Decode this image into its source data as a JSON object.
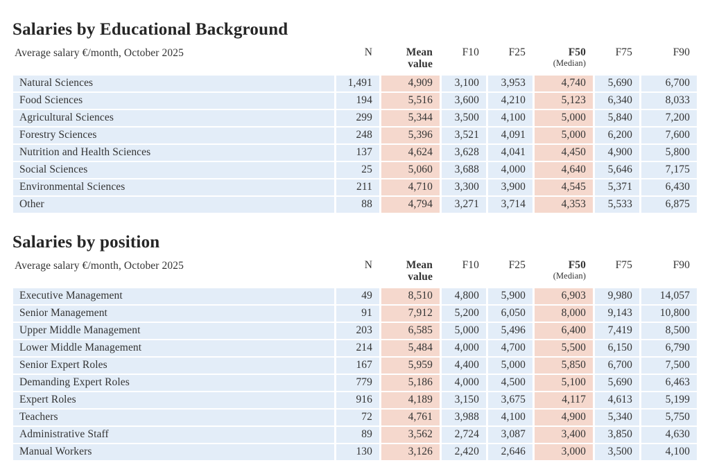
{
  "page": {
    "row_bg_color": "#e3edf8",
    "highlight_bg_color": "#f5d8cd",
    "text_color": "#333333",
    "title_color": "#262626"
  },
  "chart_data": [
    {
      "type": "table",
      "title": "Salaries by Educational Background",
      "subtitle": "Average salary €/month, October 2025",
      "columns": [
        {
          "label": "N",
          "sub": "",
          "bold": false,
          "sub_bold": false
        },
        {
          "label": "Mean",
          "sub": "value",
          "bold": true,
          "sub_bold": true
        },
        {
          "label": "F10",
          "sub": "",
          "bold": false,
          "sub_bold": false
        },
        {
          "label": "F25",
          "sub": "",
          "bold": false,
          "sub_bold": false
        },
        {
          "label": "F50",
          "sub": "(Median)",
          "bold": true,
          "sub_bold": false
        },
        {
          "label": "F75",
          "sub": "",
          "bold": false,
          "sub_bold": false
        },
        {
          "label": "F90",
          "sub": "",
          "bold": false,
          "sub_bold": false
        }
      ],
      "highlight_columns": [
        1,
        4
      ],
      "rows": [
        {
          "label": "Natural Sciences",
          "values": [
            "1,491",
            "4,909",
            "3,100",
            "3,953",
            "4,740",
            "5,690",
            "6,700"
          ]
        },
        {
          "label": "Food Sciences",
          "values": [
            "194",
            "5,516",
            "3,600",
            "4,210",
            "5,123",
            "6,340",
            "8,033"
          ]
        },
        {
          "label": "Agricultural Sciences",
          "values": [
            "299",
            "5,344",
            "3,500",
            "4,100",
            "5,000",
            "5,840",
            "7,200"
          ]
        },
        {
          "label": "Forestry Sciences",
          "values": [
            "248",
            "5,396",
            "3,521",
            "4,091",
            "5,000",
            "6,200",
            "7,600"
          ]
        },
        {
          "label": "Nutrition and Health Sciences",
          "values": [
            "137",
            "4,624",
            "3,628",
            "4,041",
            "4,450",
            "4,900",
            "5,800"
          ]
        },
        {
          "label": "Social Sciences",
          "values": [
            "25",
            "5,060",
            "3,688",
            "4,000",
            "4,640",
            "5,646",
            "7,175"
          ]
        },
        {
          "label": "Environmental Sciences",
          "values": [
            "211",
            "4,710",
            "3,300",
            "3,900",
            "4,545",
            "5,371",
            "6,430"
          ]
        },
        {
          "label": "Other",
          "values": [
            "88",
            "4,794",
            "3,271",
            "3,714",
            "4,353",
            "5,533",
            "6,875"
          ]
        }
      ]
    },
    {
      "type": "table",
      "title": "Salaries by position",
      "subtitle": "Average salary €/month, October 2025",
      "columns": [
        {
          "label": "N",
          "sub": "",
          "bold": false,
          "sub_bold": false
        },
        {
          "label": "Mean",
          "sub": "value",
          "bold": true,
          "sub_bold": true
        },
        {
          "label": "F10",
          "sub": "",
          "bold": false,
          "sub_bold": false
        },
        {
          "label": "F25",
          "sub": "",
          "bold": false,
          "sub_bold": false
        },
        {
          "label": "F50",
          "sub": "(Median)",
          "bold": true,
          "sub_bold": false
        },
        {
          "label": "F75",
          "sub": "",
          "bold": false,
          "sub_bold": false
        },
        {
          "label": "F90",
          "sub": "",
          "bold": false,
          "sub_bold": false
        }
      ],
      "highlight_columns": [
        1,
        4
      ],
      "rows": [
        {
          "label": "Executive Management",
          "values": [
            "49",
            "8,510",
            "4,800",
            "5,900",
            "6,903",
            "9,980",
            "14,057"
          ]
        },
        {
          "label": "Senior Management",
          "values": [
            "91",
            "7,912",
            "5,200",
            "6,050",
            "8,000",
            "9,143",
            "10,800"
          ]
        },
        {
          "label": "Upper Middle Management",
          "values": [
            "203",
            "6,585",
            "5,000",
            "5,496",
            "6,400",
            "7,419",
            "8,500"
          ]
        },
        {
          "label": "Lower Middle Management",
          "values": [
            "214",
            "5,484",
            "4,000",
            "4,700",
            "5,500",
            "6,150",
            "6,790"
          ]
        },
        {
          "label": "Senior Expert Roles",
          "values": [
            "167",
            "5,959",
            "4,400",
            "5,000",
            "5,850",
            "6,700",
            "7,500"
          ]
        },
        {
          "label": "Demanding Expert Roles",
          "values": [
            "779",
            "5,186",
            "4,000",
            "4,500",
            "5,100",
            "5,690",
            "6,463"
          ]
        },
        {
          "label": "Expert Roles",
          "values": [
            "916",
            "4,189",
            "3,150",
            "3,675",
            "4,117",
            "4,613",
            "5,199"
          ]
        },
        {
          "label": "Teachers",
          "values": [
            "72",
            "4,761",
            "3,988",
            "4,100",
            "4,900",
            "5,340",
            "5,750"
          ]
        },
        {
          "label": "Administrative Staff",
          "values": [
            "89",
            "3,562",
            "2,724",
            "3,087",
            "3,400",
            "3,850",
            "4,630"
          ]
        },
        {
          "label": "Manual Workers",
          "values": [
            "130",
            "3,126",
            "2,420",
            "2,646",
            "3,000",
            "3,500",
            "4,100"
          ]
        }
      ]
    }
  ]
}
